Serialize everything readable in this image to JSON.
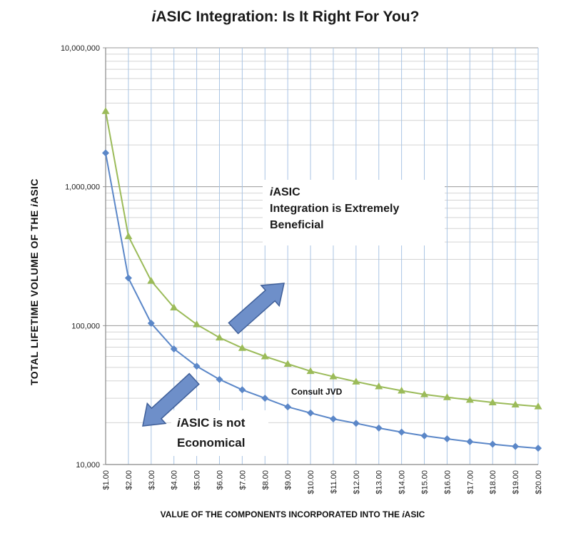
{
  "title": {
    "italic": "i",
    "rest": "ASIC Integration:  Is It Right For You?"
  },
  "chart_data": {
    "type": "line",
    "title": "iASIC Integration:  Is It Right For You?",
    "xlabel": "VALUE OF THE COMPONENTS INCORPORATED INTO THE iASIC",
    "ylabel": "TOTAL LIFETIME VOLUME OF THE iASIC",
    "y_scale": "log",
    "ylim": [
      10000,
      10000000
    ],
    "y_ticks": [
      10000,
      100000,
      1000000,
      10000000
    ],
    "y_tick_labels": [
      "10,000",
      "100,000",
      "1,000,000",
      "10,000,000"
    ],
    "categories": [
      "$1.00",
      "$2.00",
      "$3.00",
      "$4.00",
      "$5.00",
      "$6.00",
      "$7.00",
      "$8.00",
      "$9.00",
      "$10.00",
      "$11.00",
      "$12.00",
      "$13.00",
      "$14.00",
      "$15.00",
      "$16.00",
      "$17.00",
      "$18.00",
      "$19.00",
      "$20.00"
    ],
    "x": [
      1,
      2,
      3,
      4,
      5,
      6,
      7,
      8,
      9,
      10,
      11,
      12,
      13,
      14,
      15,
      16,
      17,
      18,
      19,
      20
    ],
    "grid": true,
    "series": [
      {
        "values": [
          1750000,
          220000,
          104000,
          68000,
          51000,
          41000,
          34500,
          30000,
          26000,
          23500,
          21300,
          19800,
          18300,
          17100,
          16100,
          15300,
          14600,
          14000,
          13500,
          13100
        ],
        "color": "#5b87c8",
        "marker": "diamond"
      },
      {
        "values": [
          3500000,
          440000,
          210000,
          135000,
          102000,
          82000,
          69000,
          60000,
          53000,
          47000,
          43000,
          39500,
          36500,
          34000,
          32000,
          30500,
          29200,
          28000,
          27000,
          26200
        ],
        "color": "#9bbb59",
        "marker": "triangle"
      }
    ],
    "annotations": {
      "upper": {
        "italic": "i",
        "line1": "ASIC",
        "line2": "Integration is Extremely",
        "line3": "Beneficial"
      },
      "lower": {
        "italic": "i",
        "line1": "ASIC is not",
        "line2": "Economical"
      },
      "middle": "Consult JVD"
    },
    "colors": {
      "grid": "#a9c4e4",
      "axis": "#888888",
      "arrow_fill": "#6e8fc9",
      "arrow_stroke": "#3f5f99"
    }
  }
}
